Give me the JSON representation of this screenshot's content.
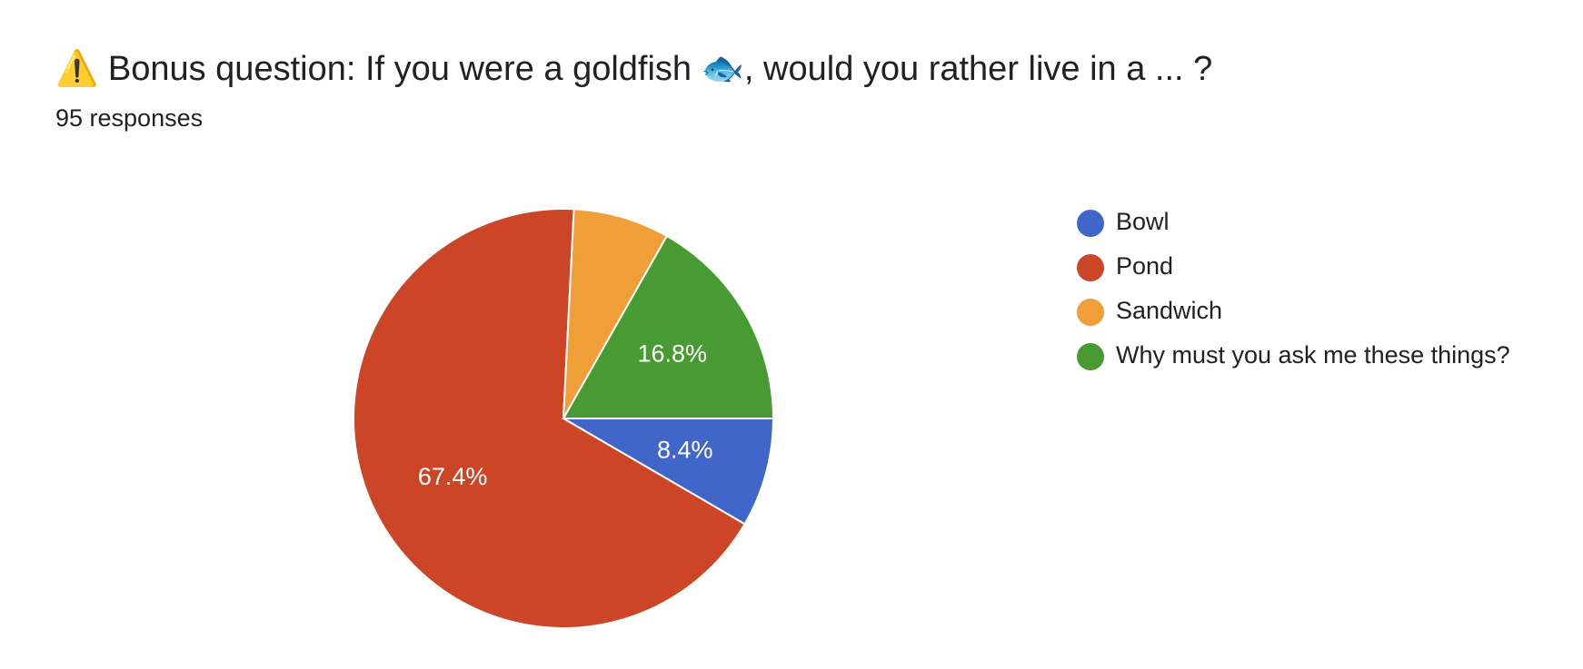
{
  "chart_data": {
    "type": "pie",
    "title": "⚠️ Bonus question: If you were a goldfish 🐟, would you rather live in a ... ?",
    "subtitle": "95 responses",
    "categories": [
      "Bowl",
      "Pond",
      "Sandwich",
      "Why must you ask me these things?"
    ],
    "values": [
      8.4,
      67.4,
      7.4,
      16.8
    ],
    "value_labels": [
      "8.4%",
      "67.4%",
      null,
      "16.8%"
    ],
    "colors": [
      "#4166c9",
      "#cc4526",
      "#f09e38",
      "#489a33"
    ],
    "legend": "right"
  }
}
